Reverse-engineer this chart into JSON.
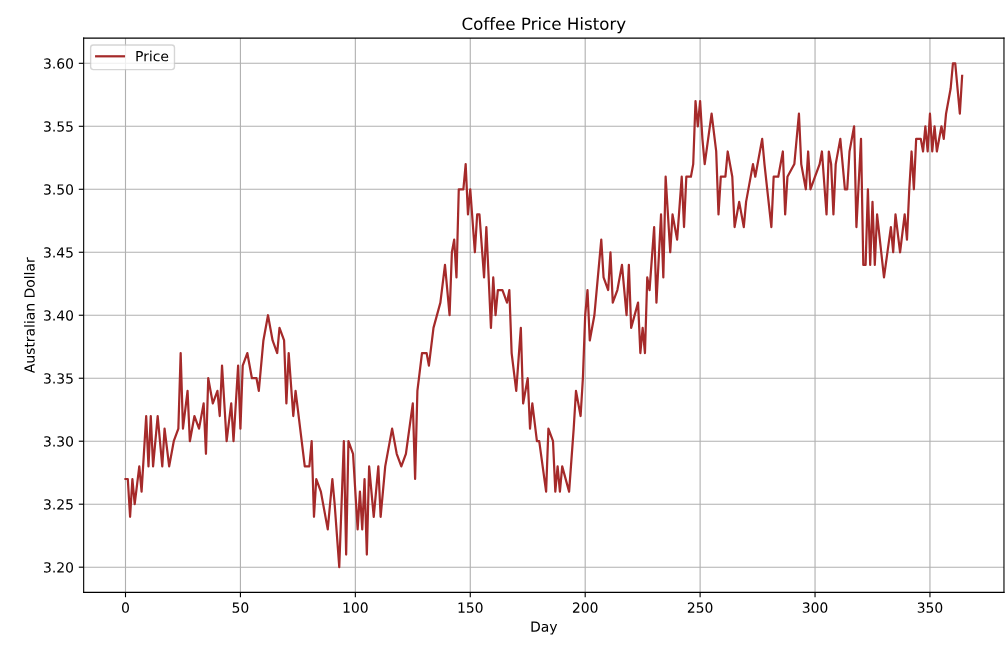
{
  "chart_data": {
    "type": "line",
    "title": "Coffee Price History",
    "xlabel": "Day",
    "ylabel": "Australian Dollar",
    "x": [
      0,
      1,
      2,
      3,
      4,
      6,
      7,
      9,
      10,
      11,
      12,
      14,
      16,
      17,
      19,
      21,
      23,
      24,
      25,
      27,
      28,
      30,
      32,
      34,
      35,
      36,
      38,
      40,
      41,
      42,
      44,
      46,
      47,
      49,
      50,
      51,
      53,
      55,
      57,
      58,
      60,
      62,
      64,
      66,
      67,
      69,
      70,
      71,
      73,
      74,
      76,
      78,
      80,
      81,
      82,
      83,
      85,
      88,
      90,
      91,
      93,
      95,
      96,
      97,
      99,
      101,
      102,
      103,
      104,
      105,
      106,
      108,
      110,
      111,
      113,
      116,
      118,
      120,
      122,
      125,
      126,
      127,
      129,
      131,
      132,
      134,
      137,
      139,
      141,
      142,
      143,
      144,
      145,
      147,
      148,
      149,
      150,
      152,
      153,
      154,
      156,
      157,
      159,
      160,
      161,
      162,
      164,
      166,
      167,
      168,
      170,
      172,
      173,
      175,
      176,
      177,
      179,
      180,
      183,
      184,
      186,
      187,
      188,
      189,
      190,
      193,
      195,
      196,
      198,
      199,
      200,
      201,
      202,
      204,
      205,
      207,
      208,
      210,
      211,
      212,
      214,
      216,
      218,
      219,
      220,
      223,
      224,
      225,
      226,
      227,
      228,
      230,
      231,
      233,
      234,
      235,
      237,
      238,
      240,
      242,
      243,
      244,
      246,
      247,
      248,
      249,
      250,
      251,
      252,
      255,
      257,
      258,
      259,
      261,
      262,
      264,
      265,
      267,
      269,
      270,
      273,
      274,
      277,
      278,
      281,
      282,
      284,
      286,
      287,
      288,
      291,
      293,
      294,
      296,
      297,
      298,
      300,
      302,
      303,
      305,
      306,
      307,
      308,
      309,
      311,
      313,
      314,
      315,
      317,
      318,
      320,
      321,
      322,
      323,
      324,
      325,
      326,
      327,
      330,
      333,
      334,
      335,
      337,
      339,
      340,
      341,
      342,
      343,
      344,
      346,
      347,
      348,
      349,
      350,
      351,
      352,
      353,
      355,
      356,
      357,
      359,
      360,
      361,
      363,
      364
    ],
    "series": [
      {
        "name": "Price",
        "color": "#a52a2a",
        "values": [
          3.27,
          3.27,
          3.24,
          3.27,
          3.25,
          3.28,
          3.26,
          3.32,
          3.28,
          3.32,
          3.28,
          3.32,
          3.28,
          3.31,
          3.28,
          3.3,
          3.31,
          3.37,
          3.31,
          3.34,
          3.3,
          3.32,
          3.31,
          3.33,
          3.29,
          3.35,
          3.33,
          3.34,
          3.32,
          3.36,
          3.3,
          3.33,
          3.3,
          3.36,
          3.31,
          3.36,
          3.37,
          3.35,
          3.35,
          3.34,
          3.38,
          3.4,
          3.38,
          3.37,
          3.39,
          3.38,
          3.33,
          3.37,
          3.32,
          3.34,
          3.31,
          3.28,
          3.28,
          3.3,
          3.24,
          3.27,
          3.26,
          3.23,
          3.27,
          3.25,
          3.2,
          3.3,
          3.21,
          3.3,
          3.29,
          3.23,
          3.26,
          3.23,
          3.27,
          3.21,
          3.28,
          3.24,
          3.28,
          3.24,
          3.28,
          3.31,
          3.29,
          3.28,
          3.29,
          3.33,
          3.27,
          3.34,
          3.37,
          3.37,
          3.36,
          3.39,
          3.41,
          3.44,
          3.4,
          3.45,
          3.46,
          3.43,
          3.5,
          3.5,
          3.52,
          3.48,
          3.5,
          3.45,
          3.48,
          3.48,
          3.43,
          3.47,
          3.39,
          3.43,
          3.4,
          3.42,
          3.42,
          3.41,
          3.42,
          3.37,
          3.34,
          3.39,
          3.33,
          3.35,
          3.31,
          3.33,
          3.3,
          3.3,
          3.26,
          3.31,
          3.3,
          3.26,
          3.28,
          3.26,
          3.28,
          3.26,
          3.31,
          3.34,
          3.32,
          3.35,
          3.4,
          3.42,
          3.38,
          3.4,
          3.42,
          3.46,
          3.43,
          3.42,
          3.45,
          3.41,
          3.42,
          3.44,
          3.4,
          3.44,
          3.39,
          3.41,
          3.37,
          3.39,
          3.37,
          3.43,
          3.42,
          3.47,
          3.41,
          3.48,
          3.43,
          3.51,
          3.45,
          3.48,
          3.46,
          3.51,
          3.47,
          3.51,
          3.51,
          3.52,
          3.57,
          3.55,
          3.57,
          3.54,
          3.52,
          3.56,
          3.53,
          3.48,
          3.51,
          3.51,
          3.53,
          3.51,
          3.47,
          3.49,
          3.47,
          3.49,
          3.52,
          3.51,
          3.54,
          3.52,
          3.47,
          3.51,
          3.51,
          3.53,
          3.48,
          3.51,
          3.52,
          3.56,
          3.52,
          3.5,
          3.53,
          3.5,
          3.51,
          3.52,
          3.53,
          3.48,
          3.53,
          3.52,
          3.48,
          3.52,
          3.54,
          3.5,
          3.5,
          3.53,
          3.55,
          3.47,
          3.54,
          3.44,
          3.44,
          3.5,
          3.44,
          3.49,
          3.44,
          3.48,
          3.43,
          3.47,
          3.45,
          3.48,
          3.45,
          3.48,
          3.46,
          3.5,
          3.53,
          3.5,
          3.54,
          3.54,
          3.53,
          3.55,
          3.53,
          3.56,
          3.53,
          3.55,
          3.53,
          3.55,
          3.54,
          3.56,
          3.58,
          3.6,
          3.6,
          3.56,
          3.59
        ]
      }
    ],
    "xlim": [
      -18.2,
      382.2
    ],
    "xticks": [
      0,
      50,
      100,
      150,
      200,
      250,
      300,
      350
    ],
    "ylim": [
      3.18,
      3.62
    ],
    "yticks": [
      {
        "value": 3.2,
        "label": "3.20"
      },
      {
        "value": 3.25,
        "label": "3.25"
      },
      {
        "value": 3.3,
        "label": "3.30"
      },
      {
        "value": 3.35,
        "label": "3.35"
      },
      {
        "value": 3.4,
        "label": "3.40"
      },
      {
        "value": 3.45,
        "label": "3.45"
      },
      {
        "value": 3.5,
        "label": "3.50"
      },
      {
        "value": 3.55,
        "label": "3.55"
      },
      {
        "value": 3.6,
        "label": "3.60"
      }
    ],
    "grid": true,
    "legend": "upper left",
    "line_style": "solid"
  }
}
